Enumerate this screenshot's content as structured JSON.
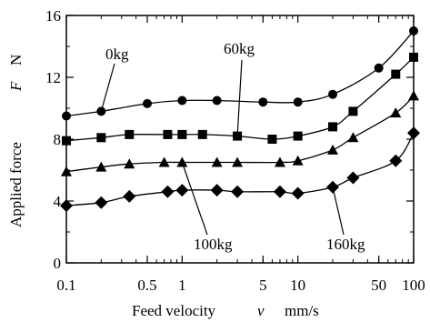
{
  "chart_data": {
    "type": "line",
    "xscale": "log",
    "xlim": [
      0.1,
      100
    ],
    "ylim": [
      0,
      16
    ],
    "xticks": [
      {
        "value": 0.1,
        "label": "0.1"
      },
      {
        "value": 0.5,
        "label": "0.5"
      },
      {
        "value": 1,
        "label": "1"
      },
      {
        "value": 5,
        "label": "5"
      },
      {
        "value": 10,
        "label": "10"
      },
      {
        "value": 50,
        "label": "50"
      },
      {
        "value": 100,
        "label": "100"
      }
    ],
    "yticks": [
      {
        "value": 0,
        "label": "0"
      },
      {
        "value": 4,
        "label": "4"
      },
      {
        "value": 8,
        "label": "8"
      },
      {
        "value": 12,
        "label": "12"
      },
      {
        "value": 16,
        "label": "16"
      }
    ],
    "xlabel": {
      "text": "Feed velocity",
      "symbol": "v",
      "unit": "mm/s"
    },
    "ylabel": {
      "text": "Applied force",
      "symbol": "F",
      "unit": "N"
    },
    "grid": false,
    "series": [
      {
        "name": "0kg",
        "marker": "circle",
        "x": [
          0.1,
          0.2,
          0.5,
          1,
          2,
          5,
          10,
          20,
          50,
          100
        ],
        "y": [
          9.5,
          9.8,
          10.3,
          10.5,
          10.5,
          10.4,
          10.4,
          10.9,
          12.6,
          15.0
        ]
      },
      {
        "name": "60kg",
        "marker": "square",
        "x": [
          0.1,
          0.2,
          0.35,
          0.75,
          1,
          1.5,
          3,
          6,
          10,
          20,
          30,
          70,
          100
        ],
        "y": [
          7.9,
          8.1,
          8.3,
          8.3,
          8.3,
          8.3,
          8.2,
          8.0,
          8.2,
          8.8,
          9.8,
          12.2,
          13.3
        ]
      },
      {
        "name": "100kg",
        "marker": "triangle",
        "x": [
          0.1,
          0.2,
          0.35,
          0.7,
          1,
          2,
          3,
          7,
          10,
          20,
          30,
          70,
          100
        ],
        "y": [
          5.9,
          6.2,
          6.4,
          6.5,
          6.5,
          6.5,
          6.5,
          6.5,
          6.6,
          7.3,
          8.1,
          9.7,
          10.8
        ]
      },
      {
        "name": "160kg",
        "marker": "diamond",
        "x": [
          0.1,
          0.2,
          0.35,
          0.75,
          1,
          2,
          3,
          7,
          10,
          20,
          30,
          70,
          100
        ],
        "y": [
          3.7,
          3.9,
          4.3,
          4.6,
          4.7,
          4.7,
          4.6,
          4.6,
          4.5,
          4.9,
          5.5,
          6.6,
          8.4
        ]
      }
    ],
    "annotations": [
      {
        "series": "0kg",
        "text": "0kg"
      },
      {
        "series": "60kg",
        "text": "60kg"
      },
      {
        "series": "100kg",
        "text": "100kg"
      },
      {
        "series": "160kg",
        "text": "160kg"
      }
    ]
  }
}
